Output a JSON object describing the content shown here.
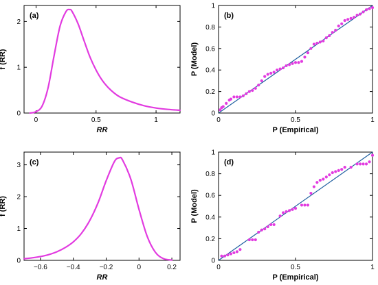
{
  "colors": {
    "curve": "#e23be0",
    "points": "#e23be0",
    "ref_line": "#1f5fa0",
    "axis": "#000000"
  },
  "chart_data": [
    {
      "type": "line",
      "panel_label": "(a)",
      "xlabel": "RR",
      "ylabel": "f (RR)",
      "xlim": [
        -0.1,
        1.2
      ],
      "ylim": [
        0,
        2.35
      ],
      "xticks": [
        0,
        0.5,
        1
      ],
      "xtick_labels": [
        "0",
        "0.5",
        "1"
      ],
      "yticks": [
        0,
        1,
        2
      ],
      "ytick_labels": [
        "0",
        "1",
        "2"
      ],
      "x": [
        -0.05,
        0.0,
        0.05,
        0.1,
        0.15,
        0.2,
        0.25,
        0.28,
        0.3,
        0.35,
        0.4,
        0.45,
        0.5,
        0.55,
        0.6,
        0.65,
        0.7,
        0.8,
        0.9,
        1.0,
        1.1,
        1.2
      ],
      "y": [
        0.0,
        0.03,
        0.15,
        0.55,
        1.25,
        1.9,
        2.22,
        2.26,
        2.22,
        1.95,
        1.58,
        1.22,
        0.94,
        0.72,
        0.56,
        0.44,
        0.35,
        0.24,
        0.16,
        0.11,
        0.08,
        0.06
      ]
    },
    {
      "type": "scatter",
      "panel_label": "(b)",
      "xlabel": "P (Empirical)",
      "ylabel": "P (Model)",
      "xlim": [
        0,
        1
      ],
      "ylim": [
        0,
        1
      ],
      "xticks": [
        0,
        0.5,
        1
      ],
      "xtick_labels": [
        "0",
        "0.5",
        "1"
      ],
      "yticks": [
        0,
        0.2,
        0.4,
        0.6,
        0.8,
        1
      ],
      "ytick_labels": [
        "0",
        "0.2",
        "0.4",
        "0.6",
        "0.8",
        "1"
      ],
      "reference_line": [
        [
          0,
          0
        ],
        [
          1,
          1
        ]
      ],
      "x": [
        0.01,
        0.02,
        0.03,
        0.05,
        0.07,
        0.08,
        0.1,
        0.12,
        0.14,
        0.16,
        0.18,
        0.2,
        0.22,
        0.24,
        0.26,
        0.28,
        0.3,
        0.32,
        0.34,
        0.36,
        0.38,
        0.4,
        0.42,
        0.44,
        0.46,
        0.48,
        0.5,
        0.52,
        0.54,
        0.56,
        0.58,
        0.6,
        0.62,
        0.64,
        0.66,
        0.68,
        0.7,
        0.72,
        0.74,
        0.76,
        0.78,
        0.8,
        0.82,
        0.84,
        0.86,
        0.88,
        0.9,
        0.92,
        0.94,
        0.96,
        0.98,
        1.0
      ],
      "y": [
        0.03,
        0.05,
        0.06,
        0.09,
        0.12,
        0.13,
        0.15,
        0.15,
        0.15,
        0.16,
        0.18,
        0.2,
        0.21,
        0.23,
        0.26,
        0.3,
        0.34,
        0.36,
        0.37,
        0.38,
        0.4,
        0.41,
        0.42,
        0.44,
        0.45,
        0.46,
        0.47,
        0.47,
        0.48,
        0.52,
        0.56,
        0.6,
        0.64,
        0.65,
        0.66,
        0.67,
        0.7,
        0.72,
        0.75,
        0.77,
        0.81,
        0.83,
        0.86,
        0.87,
        0.88,
        0.89,
        0.91,
        0.92,
        0.94,
        0.96,
        0.97,
        0.98
      ]
    },
    {
      "type": "line",
      "panel_label": "(c)",
      "xlabel": "RR",
      "ylabel": "f (RR)",
      "xlim": [
        -0.7,
        0.25
      ],
      "ylim": [
        0,
        3.4
      ],
      "xticks": [
        -0.6,
        -0.4,
        -0.2,
        0,
        0.2
      ],
      "xtick_labels": [
        "−0.6",
        "−0.4",
        "−0.2",
        "0",
        "0.2"
      ],
      "yticks": [
        0,
        1,
        2,
        3
      ],
      "ytick_labels": [
        "0",
        "1",
        "2",
        "3"
      ],
      "x": [
        -0.7,
        -0.65,
        -0.6,
        -0.55,
        -0.5,
        -0.45,
        -0.4,
        -0.35,
        -0.3,
        -0.25,
        -0.2,
        -0.15,
        -0.12,
        -0.1,
        -0.05,
        0.0,
        0.05,
        0.1,
        0.15,
        0.2
      ],
      "y": [
        0.05,
        0.08,
        0.12,
        0.18,
        0.27,
        0.4,
        0.58,
        0.85,
        1.25,
        1.8,
        2.5,
        3.1,
        3.22,
        3.15,
        2.55,
        1.6,
        0.75,
        0.25,
        0.05,
        0.01
      ]
    },
    {
      "type": "scatter",
      "panel_label": "(d)",
      "xlabel": "P (Empirical)",
      "ylabel": "P (Model)",
      "xlim": [
        0,
        1
      ],
      "ylim": [
        0,
        1
      ],
      "xticks": [
        0,
        0.5,
        1
      ],
      "xtick_labels": [
        "0",
        "0.5",
        "1"
      ],
      "yticks": [
        0,
        0.2,
        0.4,
        0.6,
        0.8,
        1
      ],
      "ytick_labels": [
        "0",
        "0.2",
        "0.4",
        "0.6",
        "0.8",
        "1"
      ],
      "reference_line": [
        [
          0,
          0
        ],
        [
          1,
          1
        ]
      ],
      "x": [
        0.02,
        0.04,
        0.06,
        0.08,
        0.1,
        0.12,
        0.14,
        0.2,
        0.22,
        0.24,
        0.26,
        0.28,
        0.3,
        0.32,
        0.34,
        0.36,
        0.4,
        0.42,
        0.44,
        0.46,
        0.48,
        0.5,
        0.54,
        0.56,
        0.58,
        0.6,
        0.62,
        0.64,
        0.66,
        0.68,
        0.7,
        0.72,
        0.74,
        0.76,
        0.78,
        0.8,
        0.82,
        0.86,
        0.9,
        0.92,
        0.94,
        0.96,
        0.98,
        1.0
      ],
      "y": [
        0.04,
        0.04,
        0.05,
        0.06,
        0.07,
        0.08,
        0.1,
        0.19,
        0.19,
        0.19,
        0.26,
        0.28,
        0.29,
        0.31,
        0.33,
        0.33,
        0.41,
        0.44,
        0.45,
        0.46,
        0.47,
        0.48,
        0.51,
        0.51,
        0.51,
        0.62,
        0.68,
        0.72,
        0.74,
        0.75,
        0.77,
        0.79,
        0.81,
        0.82,
        0.83,
        0.84,
        0.86,
        0.86,
        0.89,
        0.89,
        0.89,
        0.89,
        0.91,
        0.97
      ]
    }
  ]
}
